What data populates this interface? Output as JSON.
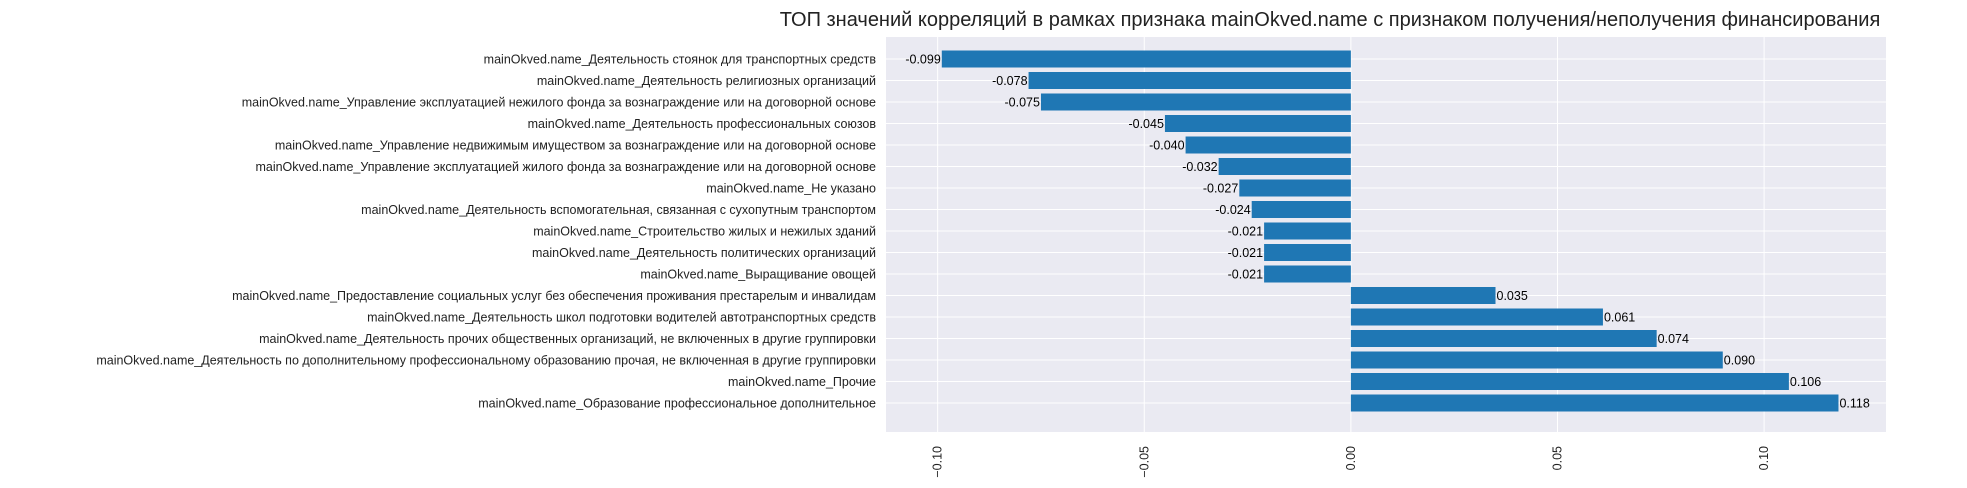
{
  "chart_data": {
    "type": "bar",
    "orientation": "horizontal",
    "title": "ТОП значений корреляций в рамках признака mainOkved.name с признаком получения/неполучения финансирования",
    "xlabel": "",
    "ylabel": "",
    "xlim": [
      -0.1125,
      0.1295
    ],
    "xticks": [
      "−0.10",
      "−0.05",
      "0.00",
      "0.05",
      "0.10"
    ],
    "xtick_values": [
      -0.1,
      -0.05,
      0.0,
      0.05,
      0.1
    ],
    "grid": true,
    "bar_color": "#1f77b4",
    "background_color": "#eaeaf2",
    "categories": [
      "mainOkved.name_Деятельность стоянок для транспортных средств",
      "mainOkved.name_Деятельность религиозных организаций",
      "mainOkved.name_Управление эксплуатацией нежилого фонда за вознаграждение или на договорной основе",
      "mainOkved.name_Деятельность профессиональных союзов",
      "mainOkved.name_Управление недвижимым имуществом за вознаграждение или на договорной основе",
      "mainOkved.name_Управление эксплуатацией жилого фонда за вознаграждение или на договорной основе",
      "mainOkved.name_Не указано",
      "mainOkved.name_Деятельность вспомогательная, связанная с сухопутным транспортом",
      "mainOkved.name_Строительство жилых и нежилых зданий",
      "mainOkved.name_Деятельность политических организаций",
      "mainOkved.name_Выращивание овощей",
      "mainOkved.name_Предоставление социальных услуг без обеспечения проживания престарелым и инвалидам",
      "mainOkved.name_Деятельность школ подготовки водителей автотранспортных средств",
      "mainOkved.name_Деятельность прочих общественных организаций, не включенных в другие группировки",
      "mainOkved.name_Деятельность по дополнительному профессиональному образованию прочая, не включенная в другие группировки",
      "mainOkved.name_Прочие",
      "mainOkved.name_Образование профессиональное дополнительное"
    ],
    "values": [
      -0.099,
      -0.078,
      -0.075,
      -0.045,
      -0.04,
      -0.032,
      -0.027,
      -0.024,
      -0.021,
      -0.021,
      -0.021,
      0.035,
      0.061,
      0.074,
      0.09,
      0.106,
      0.118
    ],
    "value_labels": [
      "-0.099",
      "-0.078",
      "-0.075",
      "-0.045",
      "-0.040",
      "-0.032",
      "-0.027",
      "-0.024",
      "-0.021",
      "-0.021",
      "-0.021",
      "0.035",
      "0.061",
      "0.074",
      "0.090",
      "0.106",
      "0.118"
    ]
  }
}
